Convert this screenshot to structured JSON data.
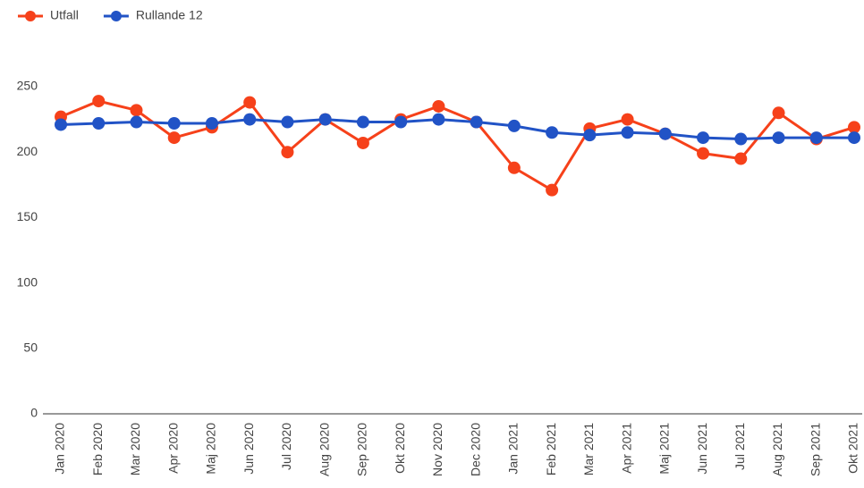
{
  "chart_data": {
    "type": "line",
    "categories": [
      "Jan 2020",
      "Feb 2020",
      "Mar 2020",
      "Apr 2020",
      "Maj 2020",
      "Jun 2020",
      "Jul 2020",
      "Aug 2020",
      "Sep 2020",
      "Okt 2020",
      "Nov 2020",
      "Dec 2020",
      "Jan 2021",
      "Feb 2021",
      "Mar 2021",
      "Apr 2021",
      "Maj 2021",
      "Jun 2021",
      "Jul 2021",
      "Aug 2021",
      "Sep 2021",
      "Okt 2021"
    ],
    "series": [
      {
        "name": "Utfall",
        "color": "#f6411a",
        "values": [
          227,
          239,
          232,
          211,
          219,
          238,
          200,
          225,
          207,
          225,
          235,
          223,
          188,
          171,
          218,
          225,
          214,
          199,
          195,
          230,
          210,
          219
        ]
      },
      {
        "name": "Rullande 12",
        "color": "#2153c6",
        "values": [
          221,
          222,
          223,
          222,
          222,
          225,
          223,
          225,
          223,
          223,
          225,
          223,
          220,
          215,
          213,
          215,
          214,
          211,
          210,
          211,
          211,
          211
        ]
      }
    ],
    "ylim": [
      0,
      250
    ],
    "yticks": [
      0,
      50,
      100,
      150,
      200,
      250
    ],
    "legend": "top-left"
  }
}
